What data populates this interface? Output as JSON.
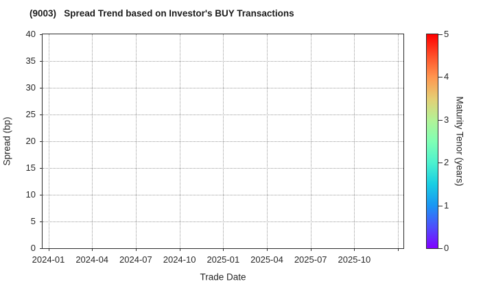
{
  "title": "(9003)   Spread Trend based on Investor's BUY Transactions",
  "colors": {
    "text": "#262626",
    "title_text": "#1a1a1a",
    "spine": "#2b2b2b",
    "grid": "#999999",
    "background": "#ffffff"
  },
  "chart_data": {
    "type": "scatter",
    "title": "(9003)   Spread Trend based on Investor's BUY Transactions",
    "xlabel": "Trade Date",
    "ylabel": "Spread (bp)",
    "x_tick_labels": [
      "2024-01",
      "2024-04",
      "2024-07",
      "2024-10",
      "2025-01",
      "2025-04",
      "2025-07",
      "2025-10"
    ],
    "x_gridline_count": 9,
    "y_ticks": [
      0,
      5,
      10,
      15,
      20,
      25,
      30,
      35,
      40
    ],
    "ylim": [
      0,
      40
    ],
    "grid": true,
    "legend_position": "none",
    "points": [],
    "colorbar": {
      "label": "Maturity Tenor (years)",
      "ticks": [
        0,
        1,
        2,
        3,
        4,
        5
      ],
      "range": [
        0,
        5
      ],
      "colormap": "rainbow",
      "gradient_stops_bottom_to_top": [
        "#8000ff",
        "#4d4ffc",
        "#1a96f3",
        "#1acee3",
        "#4df2ce",
        "#80ffb4",
        "#b3f296",
        "#e5ce74",
        "#ff964f",
        "#ff4f28",
        "#ff0000"
      ]
    }
  }
}
